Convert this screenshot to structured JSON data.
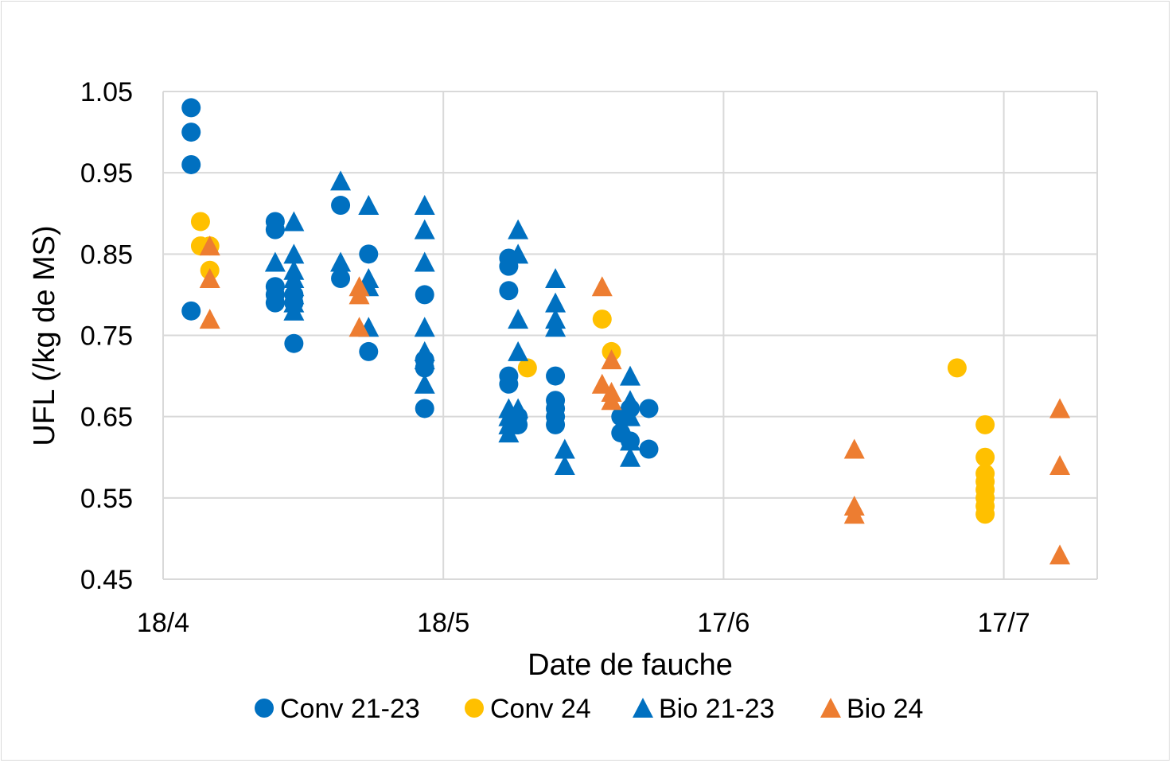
{
  "chart_data": {
    "type": "scatter",
    "title": "",
    "xlabel": "Date de fauche",
    "ylabel": "UFL (/kg de MS)",
    "x_axis_kind": "date (day/month)",
    "xlim": [
      "2024-04-18",
      "2024-07-27"
    ],
    "x_ticks": [
      {
        "date": "2024-04-18",
        "label": "18/4"
      },
      {
        "date": "2024-05-18",
        "label": "18/5"
      },
      {
        "date": "2024-06-17",
        "label": "17/6"
      },
      {
        "date": "2024-07-17",
        "label": "17/7"
      }
    ],
    "ylim": [
      0.45,
      1.05
    ],
    "y_ticks": [
      {
        "value": 0.45,
        "label": "0.45"
      },
      {
        "value": 0.55,
        "label": "0.55"
      },
      {
        "value": 0.65,
        "label": "0.65"
      },
      {
        "value": 0.75,
        "label": "0.75"
      },
      {
        "value": 0.85,
        "label": "0.85"
      },
      {
        "value": 0.95,
        "label": "0.95"
      },
      {
        "value": 1.05,
        "label": "1.05"
      }
    ],
    "grid": true,
    "legend_position": "bottom",
    "series": [
      {
        "name": "Conv 21-23",
        "marker": "circle",
        "color": "#0070C0",
        "points": [
          {
            "x": "2024-04-21",
            "y": 1.03
          },
          {
            "x": "2024-04-21",
            "y": 1.0
          },
          {
            "x": "2024-04-21",
            "y": 0.96
          },
          {
            "x": "2024-04-21",
            "y": 0.78
          },
          {
            "x": "2024-04-30",
            "y": 0.89
          },
          {
            "x": "2024-04-30",
            "y": 0.88
          },
          {
            "x": "2024-04-30",
            "y": 0.81
          },
          {
            "x": "2024-04-30",
            "y": 0.8
          },
          {
            "x": "2024-04-30",
            "y": 0.79
          },
          {
            "x": "2024-05-02",
            "y": 0.8
          },
          {
            "x": "2024-05-02",
            "y": 0.79
          },
          {
            "x": "2024-05-02",
            "y": 0.74
          },
          {
            "x": "2024-05-07",
            "y": 0.91
          },
          {
            "x": "2024-05-07",
            "y": 0.82
          },
          {
            "x": "2024-05-10",
            "y": 0.85
          },
          {
            "x": "2024-05-10",
            "y": 0.73
          },
          {
            "x": "2024-05-16",
            "y": 0.8
          },
          {
            "x": "2024-05-16",
            "y": 0.72
          },
          {
            "x": "2024-05-16",
            "y": 0.71
          },
          {
            "x": "2024-05-16",
            "y": 0.66
          },
          {
            "x": "2024-05-25",
            "y": 0.845
          },
          {
            "x": "2024-05-25",
            "y": 0.835
          },
          {
            "x": "2024-05-25",
            "y": 0.805
          },
          {
            "x": "2024-05-25",
            "y": 0.7
          },
          {
            "x": "2024-05-25",
            "y": 0.69
          },
          {
            "x": "2024-05-26",
            "y": 0.65
          },
          {
            "x": "2024-05-26",
            "y": 0.64
          },
          {
            "x": "2024-05-30",
            "y": 0.7
          },
          {
            "x": "2024-05-30",
            "y": 0.67
          },
          {
            "x": "2024-05-30",
            "y": 0.66
          },
          {
            "x": "2024-05-30",
            "y": 0.65
          },
          {
            "x": "2024-05-30",
            "y": 0.64
          },
          {
            "x": "2024-06-06",
            "y": 0.65
          },
          {
            "x": "2024-06-06",
            "y": 0.63
          },
          {
            "x": "2024-06-07",
            "y": 0.66
          },
          {
            "x": "2024-06-07",
            "y": 0.62
          },
          {
            "x": "2024-06-09",
            "y": 0.66
          },
          {
            "x": "2024-06-09",
            "y": 0.61
          }
        ]
      },
      {
        "name": "Conv 24",
        "marker": "circle",
        "color": "#FFC000",
        "points": [
          {
            "x": "2024-04-22",
            "y": 0.89
          },
          {
            "x": "2024-04-22",
            "y": 0.86
          },
          {
            "x": "2024-04-23",
            "y": 0.86
          },
          {
            "x": "2024-04-23",
            "y": 0.83
          },
          {
            "x": "2024-05-27",
            "y": 0.71
          },
          {
            "x": "2024-06-04",
            "y": 0.77
          },
          {
            "x": "2024-06-05",
            "y": 0.73
          },
          {
            "x": "2024-07-12",
            "y": 0.71
          },
          {
            "x": "2024-07-15",
            "y": 0.64
          },
          {
            "x": "2024-07-15",
            "y": 0.6
          },
          {
            "x": "2024-07-15",
            "y": 0.58
          },
          {
            "x": "2024-07-15",
            "y": 0.57
          },
          {
            "x": "2024-07-15",
            "y": 0.56
          },
          {
            "x": "2024-07-15",
            "y": 0.55
          },
          {
            "x": "2024-07-15",
            "y": 0.54
          },
          {
            "x": "2024-07-15",
            "y": 0.53
          }
        ]
      },
      {
        "name": "Bio 21-23",
        "marker": "triangle",
        "color": "#0070C0",
        "points": [
          {
            "x": "2024-04-30",
            "y": 0.84
          },
          {
            "x": "2024-05-02",
            "y": 0.89
          },
          {
            "x": "2024-05-02",
            "y": 0.85
          },
          {
            "x": "2024-05-02",
            "y": 0.83
          },
          {
            "x": "2024-05-02",
            "y": 0.82
          },
          {
            "x": "2024-05-02",
            "y": 0.81
          },
          {
            "x": "2024-05-02",
            "y": 0.8
          },
          {
            "x": "2024-05-02",
            "y": 0.79
          },
          {
            "x": "2024-05-02",
            "y": 0.78
          },
          {
            "x": "2024-05-07",
            "y": 0.94
          },
          {
            "x": "2024-05-07",
            "y": 0.84
          },
          {
            "x": "2024-05-10",
            "y": 0.91
          },
          {
            "x": "2024-05-10",
            "y": 0.82
          },
          {
            "x": "2024-05-10",
            "y": 0.81
          },
          {
            "x": "2024-05-10",
            "y": 0.76
          },
          {
            "x": "2024-05-16",
            "y": 0.91
          },
          {
            "x": "2024-05-16",
            "y": 0.88
          },
          {
            "x": "2024-05-16",
            "y": 0.84
          },
          {
            "x": "2024-05-16",
            "y": 0.76
          },
          {
            "x": "2024-05-16",
            "y": 0.73
          },
          {
            "x": "2024-05-16",
            "y": 0.72
          },
          {
            "x": "2024-05-16",
            "y": 0.69
          },
          {
            "x": "2024-05-26",
            "y": 0.88
          },
          {
            "x": "2024-05-26",
            "y": 0.85
          },
          {
            "x": "2024-05-26",
            "y": 0.77
          },
          {
            "x": "2024-05-26",
            "y": 0.73
          },
          {
            "x": "2024-05-26",
            "y": 0.66
          },
          {
            "x": "2024-05-25",
            "y": 0.66
          },
          {
            "x": "2024-05-25",
            "y": 0.65
          },
          {
            "x": "2024-05-25",
            "y": 0.64
          },
          {
            "x": "2024-05-25",
            "y": 0.63
          },
          {
            "x": "2024-05-30",
            "y": 0.82
          },
          {
            "x": "2024-05-30",
            "y": 0.79
          },
          {
            "x": "2024-05-30",
            "y": 0.77
          },
          {
            "x": "2024-05-30",
            "y": 0.76
          },
          {
            "x": "2024-05-31",
            "y": 0.61
          },
          {
            "x": "2024-05-31",
            "y": 0.59
          },
          {
            "x": "2024-06-07",
            "y": 0.7
          },
          {
            "x": "2024-06-07",
            "y": 0.67
          },
          {
            "x": "2024-06-07",
            "y": 0.65
          },
          {
            "x": "2024-06-07",
            "y": 0.62
          },
          {
            "x": "2024-06-07",
            "y": 0.6
          }
        ]
      },
      {
        "name": "Bio 24",
        "marker": "triangle",
        "color": "#ED7D31",
        "points": [
          {
            "x": "2024-04-23",
            "y": 0.86
          },
          {
            "x": "2024-04-23",
            "y": 0.82
          },
          {
            "x": "2024-04-23",
            "y": 0.77
          },
          {
            "x": "2024-05-09",
            "y": 0.81
          },
          {
            "x": "2024-05-09",
            "y": 0.8
          },
          {
            "x": "2024-05-09",
            "y": 0.76
          },
          {
            "x": "2024-06-04",
            "y": 0.81
          },
          {
            "x": "2024-06-04",
            "y": 0.69
          },
          {
            "x": "2024-06-05",
            "y": 0.72
          },
          {
            "x": "2024-06-05",
            "y": 0.68
          },
          {
            "x": "2024-06-05",
            "y": 0.67
          },
          {
            "x": "2024-07-01",
            "y": 0.61
          },
          {
            "x": "2024-07-01",
            "y": 0.54
          },
          {
            "x": "2024-07-01",
            "y": 0.53
          },
          {
            "x": "2024-07-23",
            "y": 0.66
          },
          {
            "x": "2024-07-23",
            "y": 0.59
          },
          {
            "x": "2024-07-23",
            "y": 0.48
          }
        ]
      }
    ]
  }
}
